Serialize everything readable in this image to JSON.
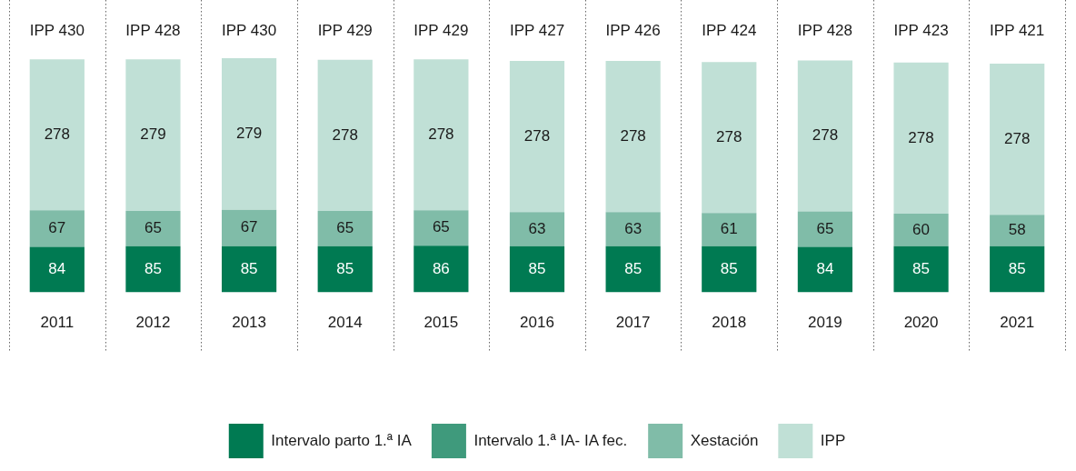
{
  "chart_data": {
    "type": "bar",
    "stacked": true,
    "categories": [
      "2011",
      "2012",
      "2013",
      "2014",
      "2015",
      "2016",
      "2017",
      "2018",
      "2019",
      "2020",
      "2021"
    ],
    "series": [
      {
        "name": "Intervalo parto 1.ª IA",
        "color": "#007a52",
        "values": [
          84,
          85,
          85,
          85,
          86,
          85,
          85,
          85,
          84,
          85,
          85
        ]
      },
      {
        "name": "Intervalo 1.ª IA- IA fec.",
        "color": "#3f9a7c",
        "values": [
          null,
          null,
          null,
          null,
          null,
          null,
          null,
          null,
          null,
          null,
          null
        ]
      },
      {
        "name": "Xestación",
        "color": "#80bca8",
        "values": [
          67,
          65,
          67,
          65,
          65,
          63,
          63,
          61,
          65,
          60,
          58
        ]
      },
      {
        "name": "IPP",
        "color": "#c0e0d6",
        "values": [
          278,
          279,
          279,
          278,
          278,
          278,
          278,
          278,
          278,
          278,
          278
        ]
      }
    ],
    "totals": [
      "IPP 430",
      "IPP 428",
      "IPP 430",
      "IPP 429",
      "IPP 429",
      "IPP 427",
      "IPP 426",
      "IPP 424",
      "IPP 428",
      "IPP 423",
      "IPP 421"
    ],
    "data_labels": true,
    "grid": "x",
    "legend": "bottom",
    "tick_labels": "x"
  }
}
